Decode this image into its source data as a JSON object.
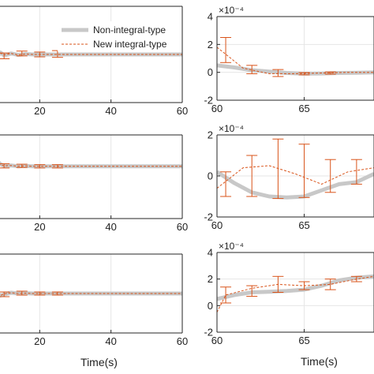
{
  "colors": {
    "non_integral": "#c8c8c8",
    "new_integral": "#d95319",
    "grid": "#e6e6e6",
    "axis": "#262626"
  },
  "legend": {
    "placement": "top-right of top-left panel",
    "entries": [
      "Non-integral-type",
      "New integral-type"
    ]
  },
  "chart_data": [
    {
      "id": "top-left",
      "type": "line",
      "xlabel": "",
      "ylabel": "",
      "xlim": [
        0,
        60
      ],
      "ylim": [
        -1,
        1
      ],
      "xticks": [
        20,
        40,
        60
      ],
      "xticklabels": [
        "20",
        "40",
        "60"
      ],
      "yticks": [],
      "yticklabels": [],
      "grid": true,
      "series": [
        {
          "name": "Non-integral-type",
          "x": [
            0,
            1,
            2,
            3,
            4,
            5,
            6,
            7,
            8,
            9,
            10,
            12,
            14,
            16,
            18,
            20,
            25,
            30,
            40,
            50,
            60
          ],
          "y": [
            0.4,
            0.6,
            0.4,
            -0.4,
            -0.15,
            0.15,
            0.06,
            -0.1,
            -0.05,
            0.04,
            -0.02,
            0.02,
            -0.01,
            0.01,
            0,
            0,
            0,
            0,
            0,
            0,
            0
          ]
        },
        {
          "name": "New integral-type",
          "x": [
            0,
            1,
            2,
            3,
            4,
            5,
            6,
            7,
            8,
            9,
            10,
            12,
            14,
            16,
            18,
            20,
            25,
            30,
            40,
            50,
            60
          ],
          "y": [
            0.4,
            0.62,
            0.35,
            -0.42,
            -0.18,
            0.18,
            0.08,
            -0.08,
            -0.03,
            0.03,
            -0.01,
            0.02,
            -0.01,
            0.01,
            0,
            0,
            0,
            0,
            0,
            0,
            0
          ]
        }
      ],
      "errorbars": {
        "x": [
          3,
          7,
          10,
          15,
          20,
          25
        ],
        "y": [
          -0.38,
          0.12,
          -0.03,
          0.02,
          0,
          0.01
        ],
        "err": [
          0.2,
          0.1,
          0.06,
          0.05,
          0.05,
          0.07
        ]
      }
    },
    {
      "id": "top-right",
      "type": "line",
      "xlabel": "",
      "ylabel": "",
      "xlim": [
        60,
        69
      ],
      "ylim": [
        -2,
        4
      ],
      "xticks": [
        60,
        65
      ],
      "xticklabels": [
        "60",
        "65"
      ],
      "yticks": [
        -2,
        0,
        2,
        4
      ],
      "yticklabels": [
        "-2",
        "0",
        "2",
        "4"
      ],
      "exponent_label": "×10⁻⁴",
      "grid": true,
      "series": [
        {
          "name": "Non-integral-type",
          "x": [
            60,
            61,
            62,
            63,
            64,
            65,
            66,
            67,
            68,
            69
          ],
          "y": [
            0.5,
            0.35,
            0.15,
            0.05,
            -0.05,
            -0.1,
            -0.08,
            -0.05,
            -0.03,
            0
          ]
        },
        {
          "name": "New integral-type",
          "x": [
            60,
            61.5,
            63,
            64.5,
            66,
            67.5,
            69
          ],
          "y": [
            1.8,
            0.3,
            -0.1,
            -0.1,
            -0.05,
            0,
            0
          ]
        }
      ],
      "errorbars": {
        "x": [
          60.5,
          62,
          63.5,
          65,
          66.5
        ],
        "y": [
          1.6,
          0.2,
          -0.05,
          -0.1,
          -0.05
        ],
        "err": [
          0.9,
          0.3,
          0.25,
          0.08,
          0.08
        ]
      }
    },
    {
      "id": "mid-left",
      "type": "line",
      "xlabel": "",
      "ylabel": "",
      "xlim": [
        0,
        60
      ],
      "ylim": [
        -1,
        1
      ],
      "xticks": [
        20,
        40,
        60
      ],
      "xticklabels": [
        "20",
        "40",
        "60"
      ],
      "yticks": [],
      "yticklabels": [],
      "grid": true,
      "series": [
        {
          "name": "Non-integral-type",
          "x": [
            0,
            1,
            2,
            3,
            4,
            5,
            6,
            7,
            8,
            9,
            10,
            12,
            14,
            16,
            18,
            20,
            25,
            30,
            40,
            50,
            60
          ],
          "y": [
            -1,
            -0.9,
            -0.6,
            -0.2,
            0.2,
            0.45,
            0.55,
            0.5,
            0.38,
            0.3,
            0.26,
            0.27,
            0.25,
            0.26,
            0.25,
            0.25,
            0.25,
            0.25,
            0.25,
            0.25,
            0.25
          ]
        },
        {
          "name": "New integral-type",
          "x": [
            0,
            1,
            2,
            3,
            4,
            5,
            6,
            7,
            8,
            9,
            10,
            12,
            14,
            16,
            18,
            20,
            25,
            30,
            40,
            50,
            60
          ],
          "y": [
            -1,
            -0.88,
            -0.58,
            -0.18,
            0.22,
            0.47,
            0.56,
            0.5,
            0.37,
            0.29,
            0.26,
            0.27,
            0.25,
            0.26,
            0.25,
            0.25,
            0.25,
            0.25,
            0.25,
            0.25,
            0.25
          ]
        }
      ],
      "errorbars": {
        "x": [
          3,
          7,
          10,
          15,
          20,
          25
        ],
        "y": [
          -0.18,
          0.5,
          0.26,
          0.26,
          0.25,
          0.25
        ],
        "err": [
          0.1,
          0.08,
          0.05,
          0.04,
          0.04,
          0.04
        ]
      }
    },
    {
      "id": "mid-right",
      "type": "line",
      "xlabel": "",
      "ylabel": "",
      "xlim": [
        60,
        69
      ],
      "ylim": [
        -2,
        2
      ],
      "xticks": [
        60,
        65
      ],
      "xticklabels": [
        "60",
        "65"
      ],
      "yticks": [
        -2,
        0,
        2
      ],
      "yticklabels": [
        "-2",
        "0",
        "2"
      ],
      "exponent_label": "×10⁻⁴",
      "grid": true,
      "series": [
        {
          "name": "Non-integral-type",
          "x": [
            60,
            61,
            62,
            63,
            64,
            65,
            66,
            67,
            68,
            69
          ],
          "y": [
            0.2,
            -0.35,
            -0.8,
            -1.0,
            -1.05,
            -1.0,
            -0.7,
            -0.4,
            -0.3,
            0.1
          ]
        },
        {
          "name": "New integral-type",
          "x": [
            60,
            61.5,
            63,
            64.5,
            66,
            67.5,
            69
          ],
          "y": [
            -0.6,
            0.4,
            0.5,
            0.1,
            -0.4,
            0.2,
            0.4
          ]
        }
      ],
      "errorbars": {
        "x": [
          60.5,
          62,
          63.5,
          65,
          66.5,
          68
        ],
        "y": [
          -0.4,
          0,
          0.35,
          0.25,
          0,
          0.2
        ],
        "err": [
          0.6,
          1.0,
          1.45,
          1.3,
          0.8,
          0.6
        ]
      }
    },
    {
      "id": "bottom-left",
      "type": "line",
      "xlabel": "Time(s)",
      "ylabel": "",
      "xlim": [
        0,
        60
      ],
      "ylim": [
        -1,
        1
      ],
      "xticks": [
        20,
        40,
        60
      ],
      "xticklabels": [
        "20",
        "40",
        "60"
      ],
      "yticks": [],
      "yticklabels": [],
      "grid": true,
      "series": [
        {
          "name": "Non-integral-type",
          "x": [
            0,
            1,
            2,
            3,
            4,
            5,
            6,
            7,
            8,
            9,
            10,
            12,
            14,
            16,
            18,
            20,
            25,
            30,
            40,
            50,
            60
          ],
          "y": [
            0.5,
            0.7,
            0.45,
            -0.3,
            -0.6,
            -0.3,
            0.05,
            0.12,
            0.02,
            -0.05,
            -0.02,
            0.02,
            0,
            0.01,
            0,
            0,
            0,
            0,
            0,
            0,
            0
          ]
        },
        {
          "name": "New integral-type",
          "x": [
            0,
            1,
            2,
            3,
            4,
            5,
            6,
            7,
            8,
            9,
            10,
            12,
            14,
            16,
            18,
            20,
            25,
            30,
            40,
            50,
            60
          ],
          "y": [
            0.5,
            0.72,
            0.42,
            -0.32,
            -0.62,
            -0.28,
            0.07,
            0.13,
            0.01,
            -0.05,
            -0.01,
            0.02,
            0,
            0.01,
            0,
            0,
            0,
            0,
            0,
            0,
            0
          ]
        }
      ],
      "errorbars": {
        "x": [
          3,
          7,
          10,
          15,
          20,
          25
        ],
        "y": [
          -0.3,
          0.12,
          -0.02,
          0.01,
          0,
          0
        ],
        "err": [
          0.15,
          0.1,
          0.06,
          0.05,
          0.04,
          0.04
        ]
      }
    },
    {
      "id": "bottom-right",
      "type": "line",
      "xlabel": "Time(s)",
      "ylabel": "",
      "xlim": [
        60,
        69
      ],
      "ylim": [
        -2,
        4
      ],
      "xticks": [
        60,
        65
      ],
      "xticklabels": [
        "60",
        "65"
      ],
      "yticks": [
        -2,
        0,
        2,
        4
      ],
      "yticklabels": [
        "-2",
        "0",
        "2",
        "4"
      ],
      "exponent_label": "×10⁻⁴",
      "grid": true,
      "series": [
        {
          "name": "Non-integral-type",
          "x": [
            60,
            61,
            62,
            63,
            64,
            65,
            66,
            67,
            68,
            69
          ],
          "y": [
            0.5,
            0.8,
            1.0,
            1.05,
            1.1,
            1.2,
            1.5,
            1.9,
            2.1,
            2.2
          ]
        },
        {
          "name": "New integral-type",
          "x": [
            60,
            60.5,
            62,
            63.5,
            65,
            66.5,
            68,
            69
          ],
          "y": [
            -0.5,
            0.8,
            1.3,
            1.6,
            1.5,
            1.6,
            2.0,
            2.2
          ]
        }
      ],
      "errorbars": {
        "x": [
          60.5,
          62,
          63.5,
          65,
          66.5,
          68
        ],
        "y": [
          0.8,
          1.1,
          1.6,
          1.5,
          1.6,
          2.0
        ],
        "err": [
          0.6,
          0.4,
          0.6,
          0.3,
          0.4,
          0.2
        ]
      }
    }
  ]
}
